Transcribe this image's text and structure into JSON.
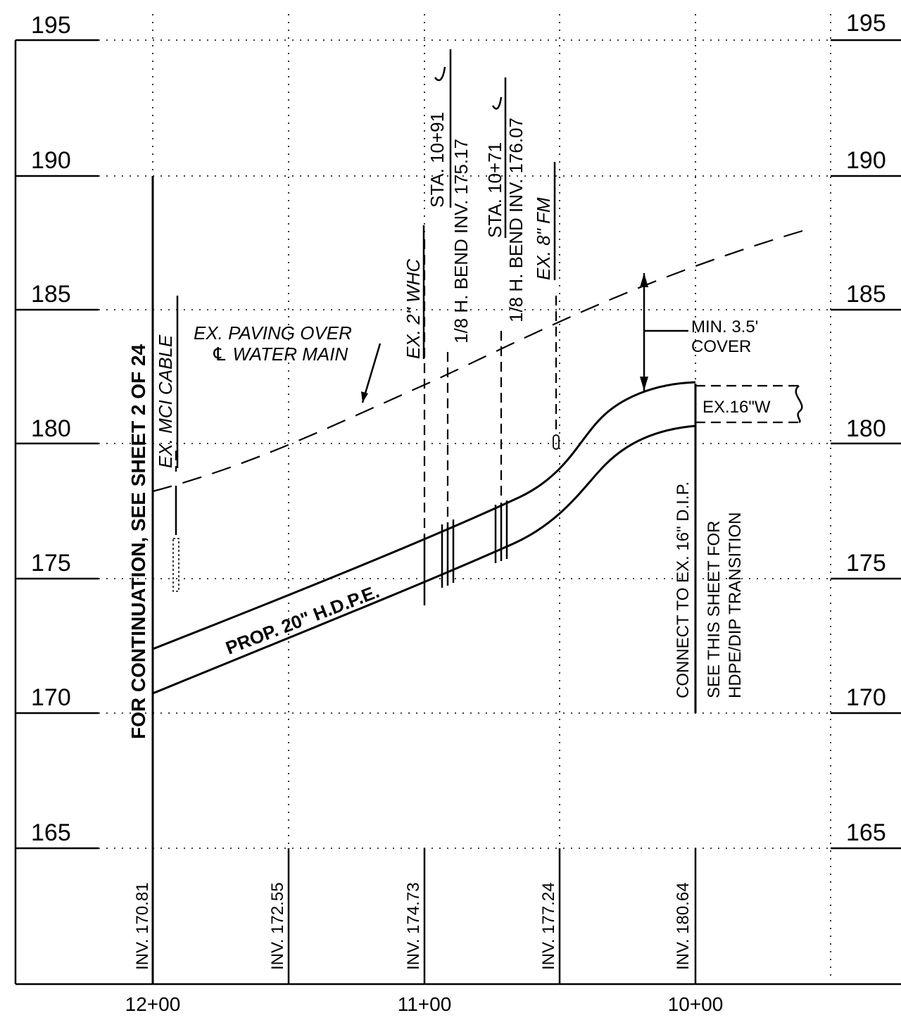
{
  "elevation_labels_left": [
    "195",
    "190",
    "185",
    "180",
    "175",
    "170",
    "165"
  ],
  "elevation_labels_right": [
    "195",
    "190",
    "185",
    "180",
    "175",
    "170",
    "165"
  ],
  "station_labels": [
    "12+00",
    "11+00",
    "10+00"
  ],
  "invert_labels": [
    "INV. 170.81",
    "INV. 172.55",
    "INV. 174.73",
    "INV. 177.24",
    "INV. 180.64"
  ],
  "notes": {
    "continuation": "FOR CONTINUATION, SEE SHEET 2 OF 24",
    "mci_cable": "EX. MCI CABLE",
    "paving_line1": "EX. PAVING OVER",
    "paving_line2": "℄ WATER MAIN",
    "whc": "EX. 2\" WHC",
    "bend1_sta": "STA. 10+91",
    "bend1_desc": "1/8 H. BEND INV. 175.17",
    "bend2_sta": "STA. 10+71",
    "bend2_desc": "1/8 H. BEND INV. 176.07",
    "fm": "EX. 8\" FM",
    "cover_line1": "MIN. 3.5'",
    "cover_line2": "COVER",
    "ex_water": "EX.16\"W",
    "pipe": "PROP. 20\" H.D.P.E.",
    "connect": "CONNECT TO EX. 16\" D.I.P.",
    "transition_line1": "SEE THIS SHEET FOR",
    "transition_line2": "HDPE/DIP TRANSITION"
  }
}
